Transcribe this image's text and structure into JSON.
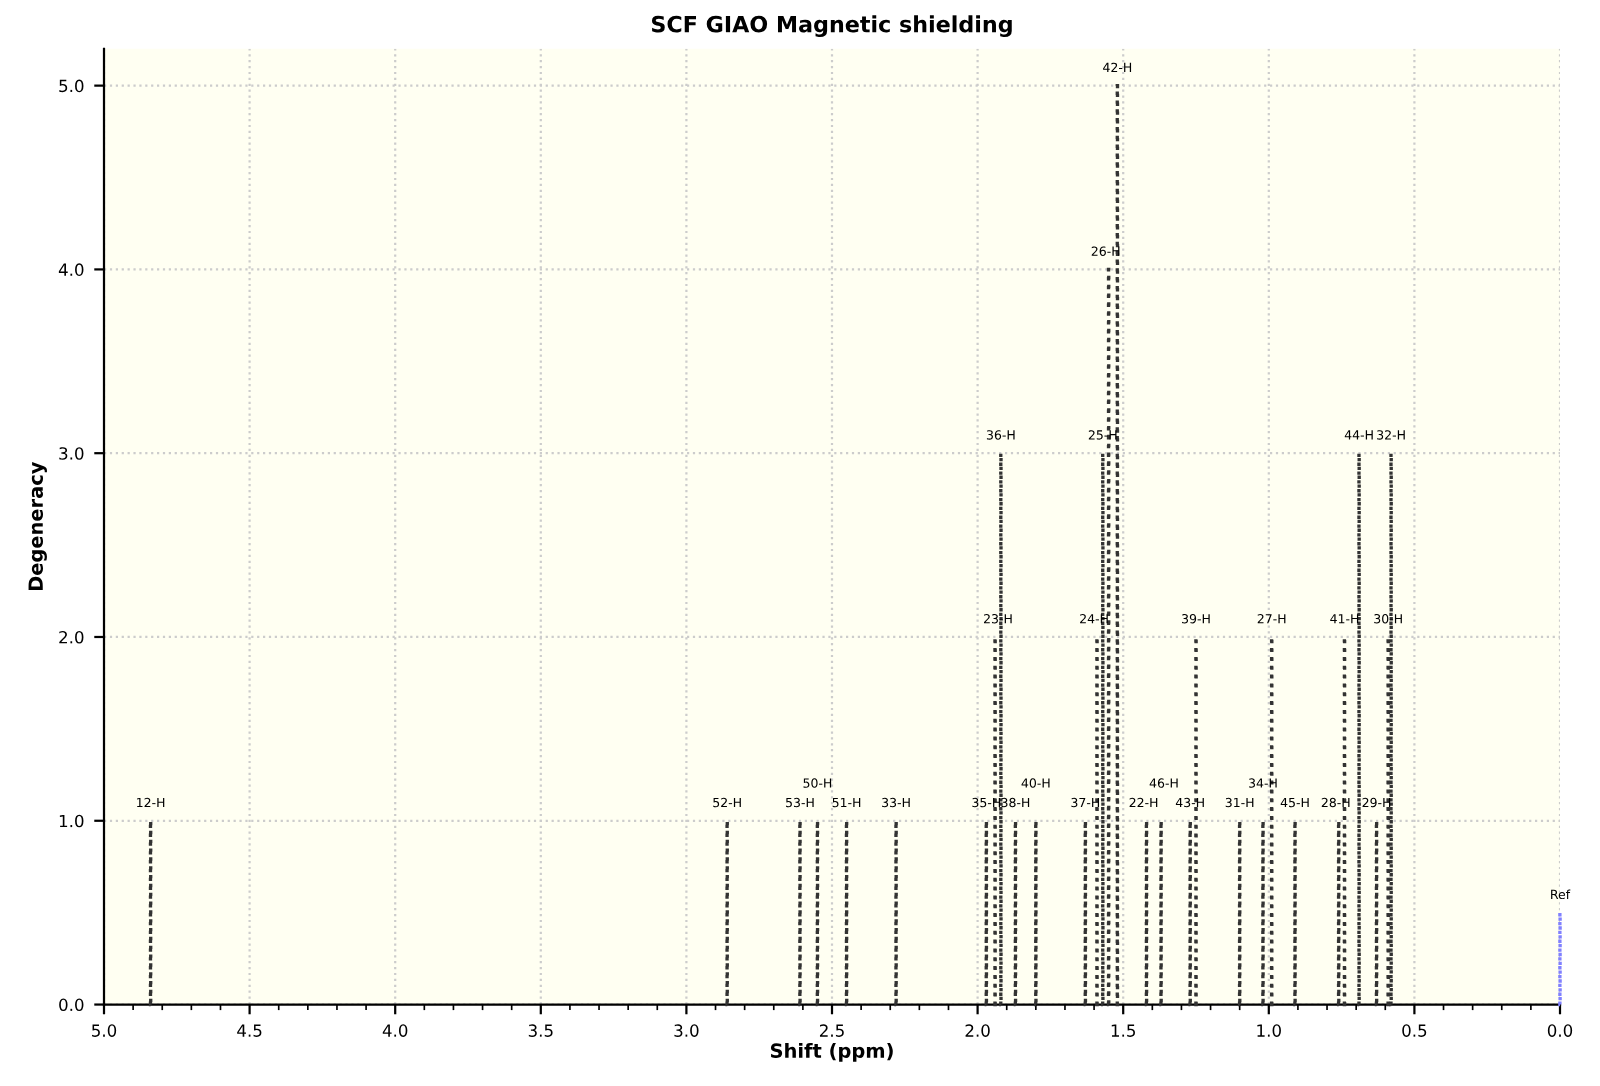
{
  "chart_data": {
    "type": "bar",
    "title": "SCF GIAO Magnetic shielding",
    "xlabel": "Shift (ppm)",
    "ylabel": "Degeneracy",
    "x": [
      4.84,
      2.86,
      2.61,
      2.55,
      2.45,
      2.28,
      1.97,
      1.94,
      1.92,
      1.87,
      1.8,
      1.63,
      1.59,
      1.57,
      1.55,
      1.52,
      1.42,
      1.37,
      1.27,
      1.25,
      1.1,
      1.02,
      0.99,
      0.91,
      0.76,
      0.74,
      0.69,
      0.63,
      0.59,
      0.58,
      0.0
    ],
    "values": [
      1,
      1,
      1,
      1,
      1,
      1,
      1,
      2,
      3,
      1,
      1,
      1,
      2,
      3,
      4,
      5,
      1,
      1,
      1,
      2,
      1,
      1,
      2,
      1,
      1,
      2,
      3,
      1,
      2,
      3,
      0.5
    ],
    "colors": [
      "#333333",
      "#333333",
      "#333333",
      "#333333",
      "#333333",
      "#333333",
      "#333333",
      "#333333",
      "#333333",
      "#333333",
      "#333333",
      "#333333",
      "#333333",
      "#333333",
      "#333333",
      "#333333",
      "#333333",
      "#333333",
      "#333333",
      "#333333",
      "#333333",
      "#333333",
      "#333333",
      "#333333",
      "#333333",
      "#333333",
      "#333333",
      "#333333",
      "#333333",
      "#333333",
      "#8080ff"
    ],
    "annotations": [
      {
        "text": "12-H",
        "x": 4.84,
        "y": 1
      },
      {
        "text": "52-H",
        "x": 2.86,
        "y": 1
      },
      {
        "text": "53-H",
        "x": 2.61,
        "y": 1
      },
      {
        "text": "50-H",
        "x": 2.55,
        "y": 1
      },
      {
        "text": "51-H",
        "x": 2.45,
        "y": 1
      },
      {
        "text": "33-H",
        "x": 2.28,
        "y": 1
      },
      {
        "text": "35-H",
        "x": 1.97,
        "y": 1
      },
      {
        "text": "23-H",
        "x": 1.93,
        "y": 2
      },
      {
        "text": "36-H",
        "x": 1.92,
        "y": 3
      },
      {
        "text": "38-H",
        "x": 1.87,
        "y": 1
      },
      {
        "text": "40-H",
        "x": 1.8,
        "y": 1
      },
      {
        "text": "37-H",
        "x": 1.63,
        "y": 1
      },
      {
        "text": "24-H",
        "x": 1.6,
        "y": 2
      },
      {
        "text": "25-H",
        "x": 1.57,
        "y": 3
      },
      {
        "text": "26-H",
        "x": 1.56,
        "y": 4
      },
      {
        "text": "42-H",
        "x": 1.52,
        "y": 5
      },
      {
        "text": "22-H",
        "x": 1.43,
        "y": 1
      },
      {
        "text": "46-H",
        "x": 1.36,
        "y": 1
      },
      {
        "text": "43-H",
        "x": 1.27,
        "y": 1
      },
      {
        "text": "39-H",
        "x": 1.25,
        "y": 2
      },
      {
        "text": "31-H",
        "x": 1.1,
        "y": 1
      },
      {
        "text": "34-H",
        "x": 1.02,
        "y": 1
      },
      {
        "text": "27-H",
        "x": 0.99,
        "y": 2
      },
      {
        "text": "45-H",
        "x": 0.91,
        "y": 1
      },
      {
        "text": "28-H",
        "x": 0.77,
        "y": 1
      },
      {
        "text": "41-H",
        "x": 0.74,
        "y": 2
      },
      {
        "text": "44-H",
        "x": 0.69,
        "y": 3
      },
      {
        "text": "29-H",
        "x": 0.63,
        "y": 1
      },
      {
        "text": "30-H",
        "x": 0.59,
        "y": 2
      },
      {
        "text": "32-H",
        "x": 0.58,
        "y": 3
      },
      {
        "text": "Ref",
        "x": 0.0,
        "y": 0.5
      }
    ],
    "xlim": [
      5.0,
      0.0
    ],
    "ylim": [
      0,
      5.2
    ],
    "xticks": [
      {
        "value": 5.0,
        "label": "5.0"
      },
      {
        "value": 4.5,
        "label": "4.5"
      },
      {
        "value": 4.0,
        "label": "4.0"
      },
      {
        "value": 3.5,
        "label": "3.5"
      },
      {
        "value": 3.0,
        "label": "3.0"
      },
      {
        "value": 2.5,
        "label": "2.5"
      },
      {
        "value": 2.0,
        "label": "2.0"
      },
      {
        "value": 1.5,
        "label": "1.5"
      },
      {
        "value": 1.0,
        "label": "1.0"
      },
      {
        "value": 0.5,
        "label": "0.5"
      },
      {
        "value": 0.0,
        "label": "0.0"
      }
    ],
    "yticks": [
      {
        "value": 0,
        "label": "0.0"
      },
      {
        "value": 1,
        "label": "1.0"
      },
      {
        "value": 2,
        "label": "2.0"
      },
      {
        "value": 3,
        "label": "3.0"
      },
      {
        "value": 4,
        "label": "4.0"
      },
      {
        "value": 5,
        "label": "5.0"
      }
    ],
    "grid": true,
    "line_style": "dotted",
    "legend": false
  }
}
